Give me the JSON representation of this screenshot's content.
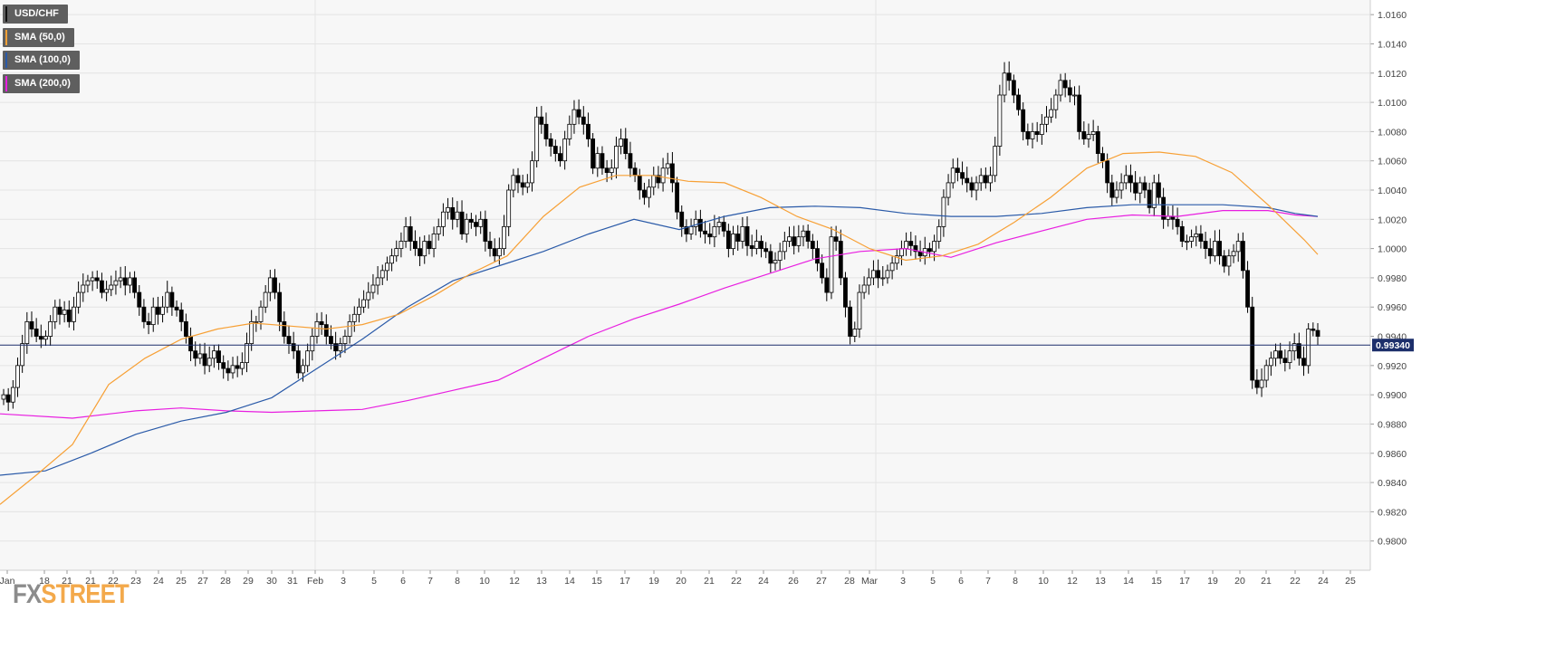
{
  "chart_data": {
    "type": "candlestick",
    "symbol": "USD/CHF",
    "legend": [
      {
        "label": "USD/CHF",
        "color": "#000000"
      },
      {
        "label": "SMA (50,0)",
        "color": "#f7a035"
      },
      {
        "label": "SMA (100,0)",
        "color": "#2a5aa8"
      },
      {
        "label": "SMA (200,0)",
        "color": "#e81ee0"
      }
    ],
    "y_axis": {
      "position": "right",
      "range": [
        0.978,
        1.017
      ],
      "ticks": [
        "1.0160",
        "1.0140",
        "1.0120",
        "1.0100",
        "1.0080",
        "1.0060",
        "1.0040",
        "1.0020",
        "1.0000",
        "0.9980",
        "0.9960",
        "0.9940",
        "0.9920",
        "0.9900",
        "0.9880",
        "0.9860",
        "0.9840",
        "0.9820",
        "0.9800"
      ],
      "grid": true
    },
    "x_axis": {
      "tick_labels": [
        "Jan",
        "18",
        "21",
        "21",
        "22",
        "23",
        "24",
        "25",
        "27",
        "28",
        "29",
        "30",
        "31",
        "Feb",
        "3",
        "5",
        "6",
        "7",
        "8",
        "10",
        "12",
        "13",
        "14",
        "15",
        "17",
        "19",
        "20",
        "21",
        "22",
        "24",
        "26",
        "27",
        "28",
        "Mar",
        "3",
        "5",
        "6",
        "7",
        "8",
        "10",
        "12",
        "13",
        "14",
        "15",
        "17",
        "19",
        "20",
        "21",
        "22",
        "24",
        "25"
      ],
      "grid": true
    },
    "current_price": {
      "value": 0.9934,
      "label": "0.99340"
    },
    "candles": [
      0.99,
      0.9895,
      0.9905,
      0.992,
      0.9935,
      0.995,
      0.9945,
      0.994,
      0.9938,
      0.994,
      0.995,
      0.996,
      0.9955,
      0.9958,
      0.995,
      0.996,
      0.997,
      0.9975,
      0.9978,
      0.998,
      0.9978,
      0.997,
      0.9972,
      0.9975,
      0.9978,
      0.998,
      0.9975,
      0.998,
      0.997,
      0.996,
      0.995,
      0.9948,
      0.996,
      0.9955,
      0.996,
      0.997,
      0.996,
      0.9958,
      0.995,
      0.994,
      0.993,
      0.9925,
      0.9928,
      0.992,
      0.9925,
      0.993,
      0.9922,
      0.9918,
      0.9915,
      0.992,
      0.9918,
      0.9922,
      0.9935,
      0.995,
      0.995,
      0.996,
      0.997,
      0.998,
      0.997,
      0.995,
      0.994,
      0.9935,
      0.993,
      0.9915,
      0.992,
      0.993,
      0.994,
      0.995,
      0.9948,
      0.994,
      0.9935,
      0.993,
      0.9935,
      0.994,
      0.995,
      0.9955,
      0.996,
      0.9965,
      0.997,
      0.9975,
      0.998,
      0.9985,
      0.999,
      0.9995,
      1.0,
      1.0005,
      1.0015,
      1.0005,
      1.0,
      0.9995,
      1.0005,
      1.0,
      1.001,
      1.0015,
      1.0025,
      1.0028,
      1.002,
      1.0025,
      1.001,
      1.002,
      1.0018,
      1.0015,
      1.002,
      1.0005,
      1.0,
      0.9995,
      1.0,
      1.0015,
      1.004,
      1.005,
      1.0045,
      1.0042,
      1.0045,
      1.006,
      1.009,
      1.0085,
      1.0075,
      1.007,
      1.0065,
      1.006,
      1.0075,
      1.0085,
      1.0095,
      1.009,
      1.0085,
      1.0075,
      1.0055,
      1.0065,
      1.0055,
      1.0052,
      1.0055,
      1.007,
      1.0075,
      1.0065,
      1.0055,
      1.005,
      1.004,
      1.0035,
      1.0042,
      1.005,
      1.0045,
      1.0055,
      1.0058,
      1.0045,
      1.0025,
      1.0015,
      1.001,
      1.0015,
      1.002,
      1.0012,
      1.001,
      1.0008,
      1.0015,
      1.0018,
      1.0012,
      1.0,
      1.001,
      1.0005,
      1.0015,
      1.0002,
      1.0,
      1.0005,
      1.0,
      0.9998,
      0.999,
      0.9992,
      0.9998,
      1.0005,
      1.0008,
      1.0002,
      1.0008,
      1.0012,
      1.0005,
      1.0,
      0.999,
      0.998,
      0.997,
      1.0008,
      1.0005,
      0.998,
      0.996,
      0.994,
      0.9945,
      0.997,
      0.9975,
      0.998,
      0.9985,
      0.998,
      0.998,
      0.9985,
      0.999,
      0.9995,
      1.0,
      1.0005,
      1.0002,
      0.9998,
      0.9995,
      1.0,
      0.9998,
      1.0005,
      1.0015,
      1.0035,
      1.0045,
      1.0055,
      1.0052,
      1.0048,
      1.0045,
      1.004,
      1.0045,
      1.005,
      1.0045,
      1.005,
      1.007,
      1.0105,
      1.012,
      1.0115,
      1.0105,
      1.0095,
      1.008,
      1.0075,
      1.008,
      1.0078,
      1.0085,
      1.009,
      1.0095,
      1.0105,
      1.0115,
      1.011,
      1.0105,
      1.0105,
      1.008,
      1.0075,
      1.0078,
      1.008,
      1.0065,
      1.006,
      1.0045,
      1.0035,
      1.004,
      1.0045,
      1.005,
      1.0045,
      1.0038,
      1.0045,
      1.004,
      1.0028,
      1.0045,
      1.0035,
      1.002,
      1.0022,
      1.002,
      1.0015,
      1.0005,
      1.0005,
      1.0008,
      1.001,
      1.0005,
      1.0,
      0.9995,
      1.0005,
      0.9995,
      0.9988,
      0.9995,
      0.9998,
      1.0005,
      0.9985,
      0.996,
      0.991,
      0.9905,
      0.991,
      0.992,
      0.9925,
      0.993,
      0.9925,
      0.9922,
      0.993,
      0.9935,
      0.9925,
      0.992,
      0.9945,
      0.9944,
      0.994
    ],
    "sma_50": [
      [
        0,
        0.9825
      ],
      [
        40,
        0.9845
      ],
      [
        80,
        0.9866
      ],
      [
        120,
        0.9907
      ],
      [
        160,
        0.9925
      ],
      [
        200,
        0.9938
      ],
      [
        240,
        0.9945
      ],
      [
        280,
        0.9949
      ],
      [
        320,
        0.9947
      ],
      [
        360,
        0.9945
      ],
      [
        400,
        0.9948
      ],
      [
        440,
        0.9955
      ],
      [
        480,
        0.9968
      ],
      [
        520,
        0.9983
      ],
      [
        560,
        0.9995
      ],
      [
        600,
        1.0022
      ],
      [
        640,
        1.0042
      ],
      [
        680,
        1.005
      ],
      [
        720,
        1.005
      ],
      [
        760,
        1.0046
      ],
      [
        800,
        1.0045
      ],
      [
        840,
        1.0035
      ],
      [
        880,
        1.0022
      ],
      [
        920,
        1.0013
      ],
      [
        960,
        1.0
      ],
      [
        1000,
        0.9992
      ],
      [
        1040,
        0.9995
      ],
      [
        1080,
        1.0003
      ],
      [
        1120,
        1.0018
      ],
      [
        1160,
        1.0035
      ],
      [
        1200,
        1.0055
      ],
      [
        1240,
        1.0065
      ],
      [
        1280,
        1.0066
      ],
      [
        1320,
        1.0063
      ],
      [
        1360,
        1.0052
      ],
      [
        1400,
        1.003
      ],
      [
        1440,
        1.0006
      ],
      [
        1455,
        0.9996
      ]
    ],
    "sma_100": [
      [
        0,
        0.9845
      ],
      [
        50,
        0.9848
      ],
      [
        100,
        0.986
      ],
      [
        150,
        0.9873
      ],
      [
        200,
        0.9882
      ],
      [
        250,
        0.9888
      ],
      [
        300,
        0.9898
      ],
      [
        350,
        0.9918
      ],
      [
        400,
        0.9938
      ],
      [
        450,
        0.996
      ],
      [
        500,
        0.9978
      ],
      [
        550,
        0.9988
      ],
      [
        600,
        0.9998
      ],
      [
        650,
        1.001
      ],
      [
        700,
        1.002
      ],
      [
        750,
        1.0013
      ],
      [
        800,
        1.0022
      ],
      [
        850,
        1.0028
      ],
      [
        900,
        1.0029
      ],
      [
        950,
        1.0028
      ],
      [
        1000,
        1.0024
      ],
      [
        1050,
        1.0022
      ],
      [
        1100,
        1.0022
      ],
      [
        1150,
        1.0024
      ],
      [
        1200,
        1.0028
      ],
      [
        1250,
        1.003
      ],
      [
        1300,
        1.003
      ],
      [
        1350,
        1.003
      ],
      [
        1400,
        1.0028
      ],
      [
        1430,
        1.0024
      ],
      [
        1455,
        1.0022
      ]
    ],
    "sma_200": [
      [
        0,
        0.9887
      ],
      [
        80,
        0.9884
      ],
      [
        150,
        0.9889
      ],
      [
        200,
        0.9891
      ],
      [
        250,
        0.9889
      ],
      [
        300,
        0.9888
      ],
      [
        350,
        0.9889
      ],
      [
        400,
        0.989
      ],
      [
        450,
        0.9896
      ],
      [
        500,
        0.9903
      ],
      [
        550,
        0.991
      ],
      [
        600,
        0.9925
      ],
      [
        650,
        0.994
      ],
      [
        700,
        0.9952
      ],
      [
        750,
        0.9962
      ],
      [
        800,
        0.9973
      ],
      [
        850,
        0.9983
      ],
      [
        900,
        0.9993
      ],
      [
        950,
        0.9998
      ],
      [
        1000,
        1.0
      ],
      [
        1050,
        0.9994
      ],
      [
        1100,
        1.0004
      ],
      [
        1150,
        1.0012
      ],
      [
        1200,
        1.002
      ],
      [
        1250,
        1.0023
      ],
      [
        1300,
        1.0022
      ],
      [
        1350,
        1.0026
      ],
      [
        1400,
        1.0026
      ],
      [
        1430,
        1.0023
      ],
      [
        1455,
        1.0022
      ]
    ]
  },
  "watermark": {
    "prefix": "FX",
    "suffix": "STREET"
  }
}
